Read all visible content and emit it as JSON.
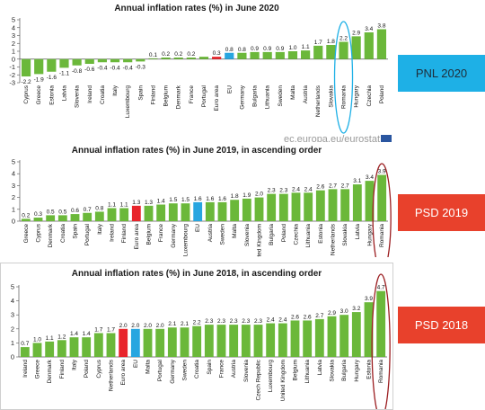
{
  "side_labels": {
    "pnl_2020": "PNL 2020",
    "psd_2019": "PSD 2019",
    "psd_2018": "PSD 2018"
  },
  "watermark_2020": "ec.europa.eu/eurostat",
  "colors": {
    "bar_default": "#6bb83a",
    "euro_area": "#e8242b",
    "eu": "#27a6e0",
    "highlight_2020": "#1eb0e6",
    "highlight_2019_2018": "#9b1d20"
  },
  "chart_data": [
    {
      "id": "c2020",
      "type": "bar",
      "title": "Annual inflation rates (%) in June 2020",
      "ylim": [
        -3,
        5
      ],
      "yticks": [
        -3,
        -2,
        -1,
        0,
        1,
        2,
        3,
        4,
        5
      ],
      "highlight": "Romania",
      "categories": [
        "Cyprus",
        "Greece",
        "Estonia",
        "Latvia",
        "Slovenia",
        "Ireland",
        "Croatia",
        "Italy",
        "Luxembourg",
        "Spain",
        "Finland",
        "Belgium",
        "Denmark",
        "France",
        "Portugal",
        "Euro area",
        "EU",
        "Germany",
        "Bulgaria",
        "Lithuania",
        "Sweden",
        "Malta",
        "Austria",
        "Netherlands",
        "Slovakia",
        "Romania",
        "Hungary",
        "Czechia",
        "Poland"
      ],
      "values": [
        -2.2,
        -1.9,
        -1.6,
        -1.1,
        -0.8,
        -0.6,
        -0.4,
        -0.4,
        -0.4,
        -0.3,
        0.1,
        0.2,
        0.2,
        0.2,
        0.3,
        0.3,
        0.8,
        0.8,
        0.9,
        0.9,
        0.9,
        1.0,
        1.1,
        1.7,
        1.8,
        2.2,
        2.9,
        3.4,
        3.8
      ],
      "labels": [
        "-2.2",
        "-1.9",
        "-1.6",
        "-1.1",
        "-0.8",
        "-0.6",
        "-0.4",
        "-0.4",
        "-0.4",
        "-0.3",
        "0.1",
        "0.2",
        "0.2",
        "0.2",
        "",
        "0.3",
        "0.8",
        "0.8",
        "0.9",
        "0.9",
        "0.9",
        "1.0",
        "1.1",
        "1.7",
        "1.8",
        "2.2",
        "2.9",
        "3.4",
        "3.8"
      ]
    },
    {
      "id": "c2019",
      "type": "bar",
      "title": "Annual inflation rates (%) in June 2019, in ascending order",
      "ylim": [
        0,
        5
      ],
      "yticks": [
        0,
        1,
        2,
        3,
        4,
        5
      ],
      "highlight": "Romania",
      "categories": [
        "Greece",
        "Cyprus",
        "Denmark",
        "Croatia",
        "Spain",
        "Portugal",
        "Italy",
        "Ireland",
        "Finland",
        "Euro area",
        "Belgium",
        "France",
        "Germany",
        "Luxembourg",
        "EU",
        "Austria",
        "Sweden",
        "Malta",
        "Slovenia",
        "United Kingdom",
        "Bulgaria",
        "Poland",
        "Czechia",
        "Lithuania",
        "Estonia",
        "Netherlands",
        "Slovakia",
        "Latvia",
        "Hungary",
        "Romania"
      ],
      "tick_labels": [
        "Greece",
        "Cyprus",
        "Denmark",
        "Croatia",
        "Spain",
        "Portugal",
        "Italy",
        "Ireland",
        "Finland",
        "Euro area",
        "Belgium",
        "France",
        "Germany",
        "Luxembourg",
        "EU",
        "Austria",
        "Sweden",
        "Malta",
        "Slovenia",
        "nited Kingdom",
        "Bulgaria",
        "Poland",
        "Czechia",
        "Lithuania",
        "Estonia",
        "Netherlands",
        "Slovakia",
        "Latvia",
        "Hungary",
        "Romania"
      ],
      "values": [
        0.2,
        0.3,
        0.5,
        0.5,
        0.6,
        0.7,
        0.8,
        1.1,
        1.1,
        1.3,
        1.3,
        1.4,
        1.5,
        1.5,
        1.6,
        1.6,
        1.6,
        1.8,
        1.9,
        2.0,
        2.3,
        2.3,
        2.4,
        2.4,
        2.6,
        2.7,
        2.7,
        3.1,
        3.4,
        3.9
      ],
      "labels": [
        "0.2",
        "0.3",
        "0.5",
        "0.5",
        "0.6",
        "0.7",
        "0.8",
        "1.1",
        "1.1",
        "1.3",
        "1.3",
        "1.4",
        "1.5",
        "1.5",
        "1.6",
        "1.6",
        "1.6",
        "1.8",
        "1.9",
        "2.0",
        "2.3",
        "2.3",
        "2.4",
        "2.4",
        "2.6",
        "2.7",
        "2.7",
        "3.1",
        "3.4",
        "3.9"
      ]
    },
    {
      "id": "c2018",
      "type": "bar",
      "title": "Annual inflation rates (%) in June 2018, in ascending order",
      "ylim": [
        0,
        5
      ],
      "yticks": [
        0,
        1,
        2,
        3,
        4,
        5
      ],
      "highlight": "Romania",
      "categories": [
        "Ireland",
        "Greece",
        "Denmark",
        "Finland",
        "Italy",
        "Poland",
        "Cyprus",
        "Netherlands",
        "Euro area",
        "EU",
        "Malta",
        "Portugal",
        "Germany",
        "Sweden",
        "Croatia",
        "Spain",
        "France",
        "Austria",
        "Slovenia",
        "Czech Republic",
        "Luxembourg",
        "United Kingdom",
        "Belgium",
        "Lithuania",
        "Latvia",
        "Slovakia",
        "Bulgaria",
        "Hungary",
        "Estonia",
        "Romania"
      ],
      "values": [
        0.7,
        1.0,
        1.1,
        1.2,
        1.4,
        1.4,
        1.7,
        1.7,
        2.0,
        2.0,
        2.0,
        2.0,
        2.1,
        2.1,
        2.2,
        2.3,
        2.3,
        2.3,
        2.3,
        2.3,
        2.4,
        2.4,
        2.6,
        2.6,
        2.7,
        2.9,
        3.0,
        3.2,
        3.9,
        4.7
      ],
      "labels": [
        "0.7",
        "1.0",
        "1.1",
        "1.2",
        "1.4",
        "1.4",
        "1.7",
        "1.7",
        "2.0",
        "2.0",
        "2.0",
        "2.0",
        "2.1",
        "2.1",
        "2.2",
        "2.3",
        "2.3",
        "2.3",
        "2.3",
        "2.3",
        "2.4",
        "2.4",
        "2.6",
        "2.6",
        "2.7",
        "2.9",
        "3.0",
        "3.2",
        "3.9",
        "4.7"
      ]
    }
  ]
}
